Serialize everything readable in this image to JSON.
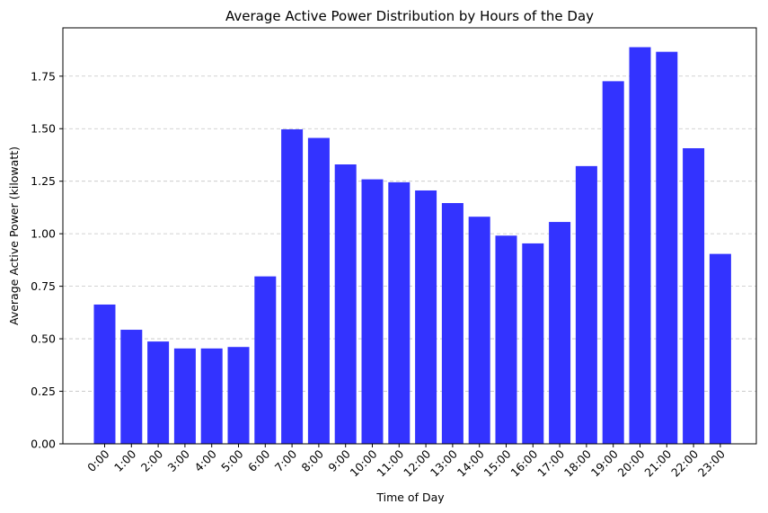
{
  "chart_data": {
    "type": "bar",
    "title": "Average Active Power Distribution by Hours of the Day",
    "xlabel": "Time of Day",
    "ylabel": "Average Active Power (kilowatt)",
    "categories": [
      "0:00",
      "1:00",
      "2:00",
      "3:00",
      "4:00",
      "5:00",
      "6:00",
      "7:00",
      "8:00",
      "9:00",
      "10:00",
      "11:00",
      "12:00",
      "13:00",
      "14:00",
      "15:00",
      "16:00",
      "17:00",
      "18:00",
      "19:00",
      "20:00",
      "21:00",
      "22:00",
      "23:00"
    ],
    "values": [
      0.663,
      0.543,
      0.487,
      0.454,
      0.454,
      0.461,
      0.797,
      1.497,
      1.456,
      1.33,
      1.259,
      1.245,
      1.206,
      1.146,
      1.081,
      0.991,
      0.954,
      1.056,
      1.322,
      1.726,
      1.888,
      1.866,
      1.407,
      0.904
    ],
    "ylim": [
      0,
      1.98
    ],
    "yticks": [
      "0.00",
      "0.25",
      "0.50",
      "0.75",
      "1.00",
      "1.25",
      "1.50",
      "1.75"
    ],
    "bar_color": "#3333ff",
    "grid": "y-dashed"
  }
}
